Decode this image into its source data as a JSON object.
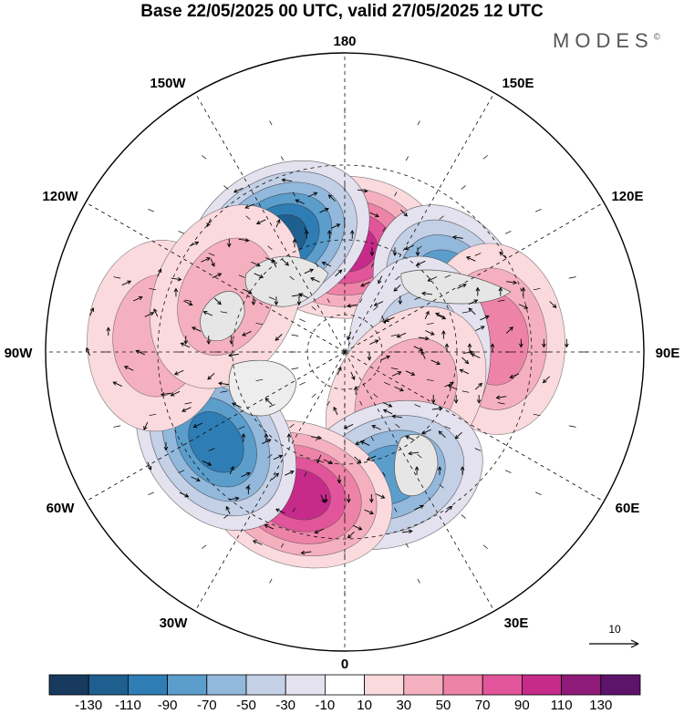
{
  "title": "Base 22/05/2025 00 UTC, valid 27/05/2025 12 UTC",
  "brand": "MODES",
  "brand_mark": "©",
  "longitude_labels": [
    "180",
    "150E",
    "120E",
    "90E",
    "60E",
    "30E",
    "0",
    "30W",
    "60W",
    "90W",
    "120W",
    "150W"
  ],
  "reference_vector": "10",
  "colorbar": {
    "labels": [
      "-130",
      "-110",
      "-90",
      "-70",
      "-50",
      "-30",
      "-10",
      "10",
      "30",
      "50",
      "70",
      "90",
      "110",
      "130"
    ],
    "colors": [
      "#173a5e",
      "#1e5f8f",
      "#2f7db5",
      "#5b9dcb",
      "#92b8dc",
      "#c3d0e6",
      "#e4e2ef",
      "#ffffff",
      "#fadadd",
      "#f5b0c0",
      "#ee83a8",
      "#e2559a",
      "#c62b8a",
      "#8f1a78",
      "#5e136b"
    ]
  },
  "anomalies": [
    {
      "lon": 180,
      "lat": 62,
      "value": 95
    },
    {
      "lon": -150,
      "lat": 55,
      "value": -120
    },
    {
      "lon": 118,
      "lat": 58,
      "value": -110
    },
    {
      "lon": 95,
      "lat": 50,
      "value": 65
    },
    {
      "lon": 90,
      "lat": 70,
      "value": -45
    },
    {
      "lon": 55,
      "lat": 70,
      "value": 50
    },
    {
      "lon": 20,
      "lat": 55,
      "value": -75
    },
    {
      "lon": -18,
      "lat": 50,
      "value": 105
    },
    {
      "lon": -55,
      "lat": 48,
      "value": -105
    },
    {
      "lon": -95,
      "lat": 40,
      "value": 45
    },
    {
      "lon": -115,
      "lat": 55,
      "value": 40
    }
  ]
}
